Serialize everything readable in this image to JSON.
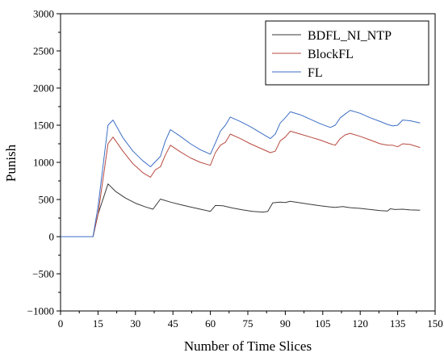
{
  "chart_data": {
    "type": "line",
    "title": "",
    "xlabel": "Number of Time Slices",
    "ylabel": "Punish",
    "xlim": [
      0,
      150
    ],
    "ylim": [
      -1000,
      3000
    ],
    "xticks": [
      0,
      15,
      30,
      45,
      60,
      75,
      90,
      105,
      120,
      135,
      150
    ],
    "xtick_labels": [
      "0",
      "15",
      "30",
      "45",
      "60",
      "75",
      "90",
      "105",
      "120",
      "135",
      "150"
    ],
    "yticks": [
      -1000,
      -500,
      0,
      500,
      1000,
      1500,
      2000,
      2500,
      3000
    ],
    "ytick_labels": [
      "−1000",
      "−500",
      "0",
      "500",
      "1000",
      "1500",
      "2000",
      "2500",
      "3000"
    ],
    "grid": false,
    "legend_position": "top-right",
    "series": [
      {
        "name": "BDFL_NI_NTP",
        "color": "#3a3a3a",
        "x": [
          0,
          13,
          15,
          19,
          22,
          26,
          30,
          34,
          37,
          40,
          44,
          48,
          52,
          56,
          60,
          62,
          65,
          69,
          73,
          77,
          81,
          83,
          85,
          88,
          90,
          92,
          96,
          100,
          104,
          108,
          110,
          113,
          116,
          120,
          124,
          128,
          131,
          132,
          134,
          137,
          140,
          144
        ],
        "y": [
          0,
          0,
          300,
          710,
          610,
          520,
          450,
          400,
          370,
          505,
          465,
          430,
          400,
          370,
          340,
          420,
          415,
          385,
          360,
          340,
          330,
          340,
          455,
          465,
          460,
          475,
          455,
          435,
          415,
          400,
          395,
          405,
          390,
          380,
          365,
          350,
          345,
          375,
          365,
          370,
          360,
          355
        ]
      },
      {
        "name": "BlockFL",
        "color": "#b84a40",
        "x": [
          0,
          13,
          15,
          19,
          21,
          25,
          29,
          33,
          36,
          38,
          40,
          42,
          44,
          48,
          52,
          56,
          60,
          62,
          64,
          66,
          68,
          72,
          76,
          80,
          84,
          86,
          88,
          90,
          92,
          96,
          100,
          104,
          108,
          110,
          112,
          114,
          116,
          120,
          124,
          128,
          131,
          133,
          135,
          137,
          140,
          144
        ],
        "y": [
          0,
          0,
          300,
          1250,
          1340,
          1150,
          980,
          860,
          800,
          900,
          940,
          1100,
          1230,
          1140,
          1060,
          1000,
          960,
          1130,
          1230,
          1270,
          1380,
          1320,
          1250,
          1190,
          1130,
          1150,
          1290,
          1340,
          1420,
          1380,
          1340,
          1300,
          1250,
          1230,
          1320,
          1370,
          1390,
          1350,
          1300,
          1250,
          1230,
          1230,
          1210,
          1250,
          1240,
          1200
        ]
      },
      {
        "name": "FL",
        "color": "#3c6fc4",
        "x": [
          0,
          13,
          15,
          19,
          21,
          25,
          29,
          33,
          36,
          38,
          40,
          42,
          44,
          48,
          52,
          56,
          60,
          62,
          64,
          66,
          68,
          72,
          76,
          80,
          84,
          86,
          88,
          90,
          92,
          96,
          100,
          104,
          108,
          110,
          112,
          114,
          116,
          120,
          124,
          128,
          131,
          133,
          135,
          137,
          140,
          144
        ],
        "y": [
          0,
          0,
          400,
          1500,
          1570,
          1330,
          1150,
          1020,
          940,
          1010,
          1080,
          1290,
          1440,
          1350,
          1250,
          1170,
          1110,
          1260,
          1420,
          1500,
          1610,
          1550,
          1480,
          1400,
          1320,
          1380,
          1530,
          1600,
          1680,
          1640,
          1580,
          1520,
          1470,
          1500,
          1600,
          1650,
          1700,
          1660,
          1600,
          1550,
          1510,
          1490,
          1500,
          1570,
          1560,
          1530
        ]
      }
    ]
  }
}
